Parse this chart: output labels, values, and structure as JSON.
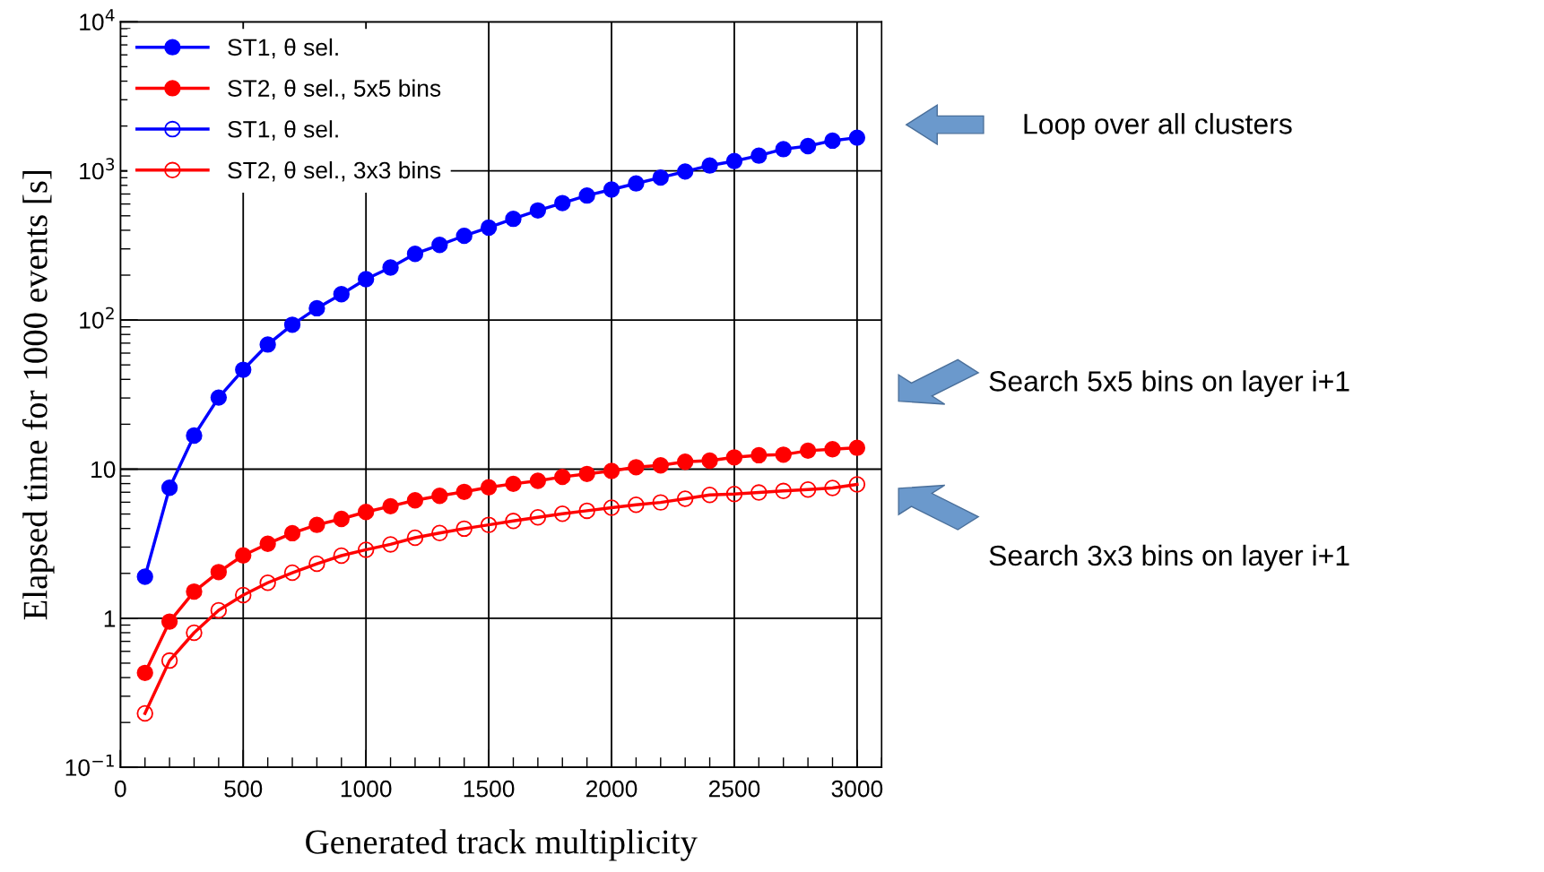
{
  "chart_data": {
    "type": "line",
    "xlabel": "Generated track multiplicity",
    "ylabel": "Elapsed time for 1000 events [s]",
    "x": [
      100,
      200,
      300,
      400,
      500,
      600,
      700,
      800,
      900,
      1000,
      1100,
      1200,
      1300,
      1400,
      1500,
      1600,
      1700,
      1800,
      1900,
      2000,
      2100,
      2200,
      2300,
      2400,
      2500,
      2600,
      2700,
      2800,
      2900,
      3000
    ],
    "series": [
      {
        "name": "ST1, θ sel.",
        "color": "#0000ff",
        "marker": "circle",
        "values": [
          1.9,
          7.5,
          16.8,
          30.2,
          46.4,
          68.5,
          93,
          120,
          149,
          188,
          225,
          278,
          319,
          367,
          417,
          477,
          543,
          609,
          684,
          750,
          824,
          903,
          991,
          1087,
          1164,
          1266,
          1400,
          1468,
          1596,
          1671
        ]
      },
      {
        "name": "ST2, θ sel., 5x5 bins",
        "color": "#ff0000",
        "marker": "circle",
        "values": [
          0.43,
          0.95,
          1.51,
          2.04,
          2.64,
          3.16,
          3.72,
          4.23,
          4.64,
          5.16,
          5.64,
          6.18,
          6.62,
          7.04,
          7.55,
          7.97,
          8.35,
          8.87,
          9.29,
          9.72,
          10.3,
          10.6,
          11.2,
          11.4,
          12.0,
          12.4,
          12.5,
          13.3,
          13.6,
          13.9
        ]
      },
      {
        "name": "ST1, θ sel.",
        "color": "#0000ff",
        "marker": "open_circle",
        "values": [
          null,
          null,
          null,
          null,
          null,
          null,
          null,
          null,
          null,
          null,
          null,
          null,
          null,
          null,
          null,
          null,
          null,
          null,
          null,
          null,
          null,
          null,
          null,
          null,
          null,
          null,
          null,
          null,
          null,
          null
        ]
      },
      {
        "name": "ST2, θ sel., 3x3 bins",
        "color": "#ff0000",
        "marker": "open_circle",
        "values": [
          0.23,
          0.52,
          0.8,
          1.13,
          1.43,
          1.73,
          2.02,
          2.32,
          2.63,
          2.88,
          3.13,
          3.47,
          3.73,
          3.99,
          4.23,
          4.49,
          4.75,
          5.02,
          5.26,
          5.51,
          5.77,
          5.98,
          6.33,
          6.71,
          6.81,
          6.97,
          7.14,
          7.3,
          7.47,
          7.9
        ]
      }
    ],
    "log": "y",
    "xlim": [
      0,
      3100
    ],
    "xticks": [
      0,
      500,
      1000,
      1500,
      2000,
      2500,
      3000
    ],
    "ylim": [
      0.1,
      10000
    ],
    "yticks": [
      {
        "value": 0.1,
        "label": "10$^{−1}$"
      },
      1,
      10,
      {
        "value": 100,
        "label": "10$^{2}$"
      },
      {
        "value": 1000,
        "label": "10$^{3}$"
      },
      {
        "value": 10000,
        "label": "10$^{4}$"
      }
    ],
    "grid": true,
    "legend": "top left",
    "line_style": "solid",
    "annotations": [
      "Loop over all clusters",
      "Search 5x5 bins on layer i+1",
      "Search 3x3 bins on layer i+1"
    ]
  }
}
